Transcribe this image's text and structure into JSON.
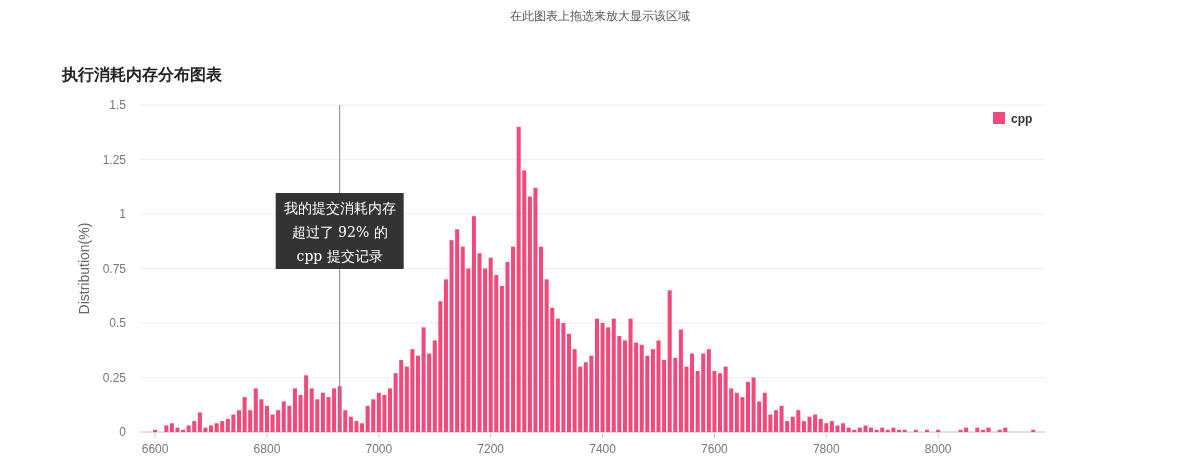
{
  "chart_data": {
    "type": "bar",
    "title": "执行消耗内存分布图表",
    "ylabel": "Distribution(%)",
    "annotations": [
      "在此图表上拖选来放大显示该区域"
    ],
    "x": [
      6590,
      6600,
      6610,
      6620,
      6630,
      6640,
      6650,
      6660,
      6670,
      6680,
      6690,
      6700,
      6710,
      6720,
      6730,
      6740,
      6750,
      6760,
      6770,
      6780,
      6790,
      6800,
      6810,
      6820,
      6830,
      6840,
      6850,
      6860,
      6870,
      6880,
      6890,
      6900,
      6910,
      6920,
      6930,
      6940,
      6950,
      6960,
      6970,
      6980,
      6990,
      7000,
      7010,
      7020,
      7030,
      7040,
      7050,
      7060,
      7070,
      7080,
      7090,
      7100,
      7110,
      7120,
      7130,
      7140,
      7150,
      7160,
      7170,
      7180,
      7190,
      7200,
      7210,
      7220,
      7230,
      7240,
      7250,
      7260,
      7270,
      7280,
      7290,
      7300,
      7310,
      7320,
      7330,
      7340,
      7350,
      7360,
      7370,
      7380,
      7390,
      7400,
      7410,
      7420,
      7430,
      7440,
      7450,
      7460,
      7470,
      7480,
      7490,
      7500,
      7510,
      7520,
      7530,
      7540,
      7550,
      7560,
      7570,
      7580,
      7590,
      7600,
      7610,
      7620,
      7630,
      7640,
      7650,
      7660,
      7670,
      7680,
      7690,
      7700,
      7710,
      7720,
      7730,
      7740,
      7750,
      7760,
      7770,
      7780,
      7790,
      7800,
      7810,
      7820,
      7830,
      7840,
      7850,
      7860,
      7870,
      7880,
      7890,
      7900,
      7910,
      7920,
      7930,
      7940,
      7950,
      7960,
      7970,
      7980,
      7990,
      8000,
      8010,
      8020,
      8030,
      8040,
      8050,
      8060,
      8070,
      8080,
      8090,
      8100,
      8110,
      8120,
      8130,
      8140,
      8150,
      8160,
      8170
    ],
    "series": [
      {
        "name": "cpp",
        "color": "#f0497a",
        "values": [
          0,
          0.01,
          0,
          0.03,
          0.04,
          0.02,
          0.01,
          0.03,
          0.05,
          0.09,
          0.02,
          0.03,
          0.04,
          0.05,
          0.06,
          0.08,
          0.1,
          0.16,
          0.1,
          0.2,
          0.15,
          0.12,
          0.08,
          0.1,
          0.14,
          0.12,
          0.2,
          0.17,
          0.26,
          0.2,
          0.15,
          0.18,
          0.16,
          0.2,
          0.21,
          0.1,
          0.07,
          0.05,
          0.04,
          0.12,
          0.15,
          0.18,
          0.17,
          0.2,
          0.27,
          0.33,
          0.3,
          0.38,
          0.35,
          0.48,
          0.36,
          0.42,
          0.6,
          0.7,
          0.88,
          0.93,
          0.85,
          0.75,
          0.99,
          0.82,
          0.75,
          0.8,
          0.72,
          0.67,
          0.78,
          0.85,
          1.4,
          1.2,
          1.08,
          1.12,
          0.85,
          0.7,
          0.57,
          0.52,
          0.5,
          0.45,
          0.38,
          0.3,
          0.32,
          0.35,
          0.52,
          0.5,
          0.48,
          0.52,
          0.44,
          0.42,
          0.52,
          0.41,
          0.4,
          0.35,
          0.38,
          0.42,
          0.33,
          0.65,
          0.34,
          0.47,
          0.3,
          0.36,
          0.28,
          0.36,
          0.38,
          0.28,
          0.27,
          0.3,
          0.2,
          0.18,
          0.16,
          0.23,
          0.25,
          0.14,
          0.18,
          0.08,
          0.1,
          0.12,
          0.05,
          0.07,
          0.1,
          0.05,
          0.07,
          0.08,
          0.06,
          0.04,
          0.05,
          0.03,
          0.04,
          0.02,
          0.01,
          0.02,
          0.03,
          0.02,
          0.01,
          0.02,
          0.01,
          0.02,
          0.01,
          0.01,
          0,
          0.01,
          0,
          0.01,
          0,
          0.01,
          0,
          0,
          0,
          0.01,
          0.02,
          0,
          0.02,
          0.01,
          0.02,
          0,
          0.01,
          0.02,
          0,
          0,
          0,
          0,
          0.01
        ]
      }
    ],
    "xlim": [
      6573,
      8191
    ],
    "xticks": [
      6600,
      6800,
      7000,
      7200,
      7400,
      7600,
      7800,
      8000
    ],
    "ylim": [
      0,
      1.5
    ],
    "yticks": [
      0,
      0.25,
      0.5,
      0.75,
      1,
      1.25,
      1.5
    ],
    "grid": "y",
    "legend": "top right",
    "ref_lines": [
      {
        "axis": "x",
        "value": 6930,
        "label": "我的提交消耗内存超过了 92% 的 cpp 提交记录",
        "color": "#888888"
      }
    ]
  }
}
